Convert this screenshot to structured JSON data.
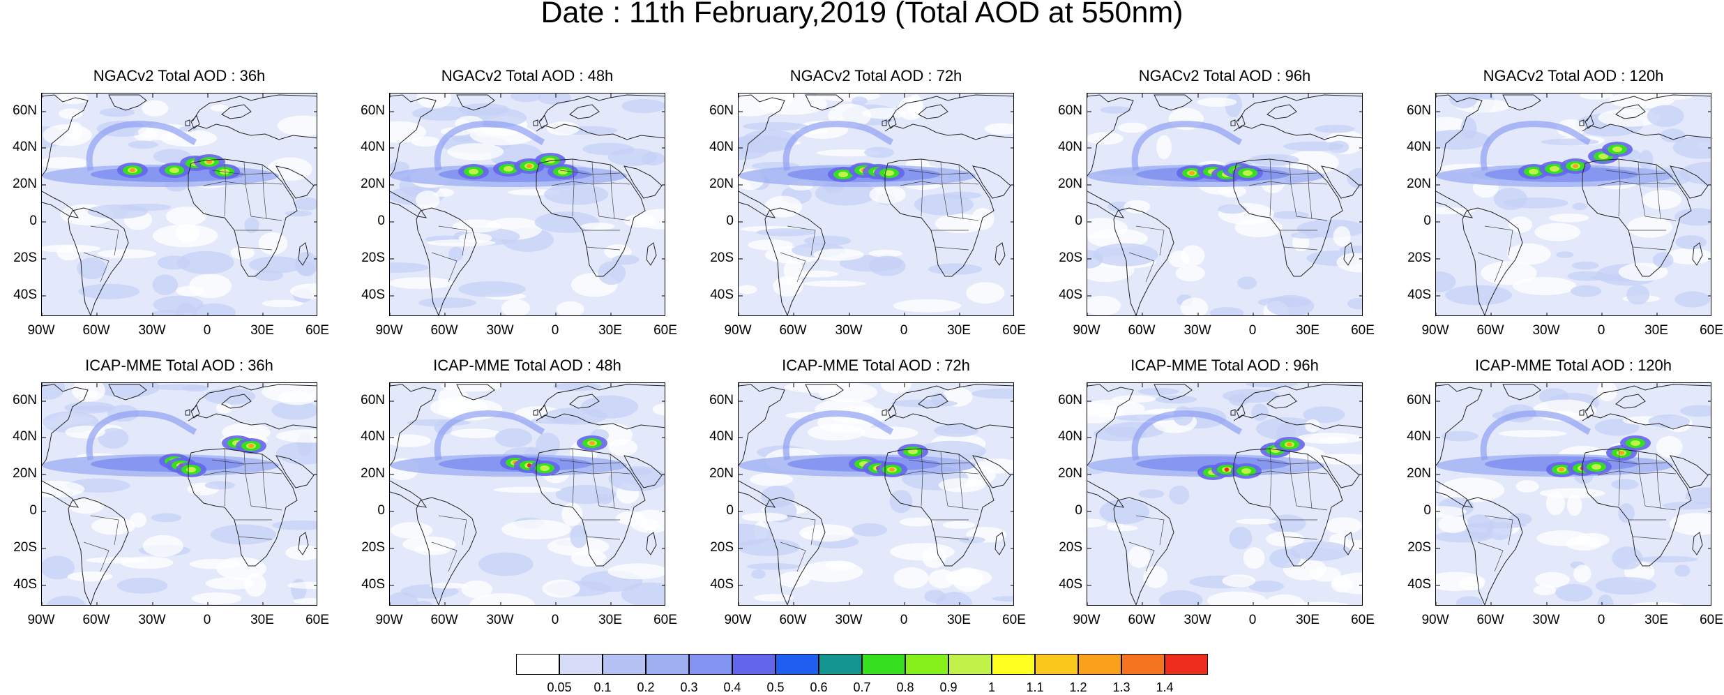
{
  "title": "Date : 11th February,2019 (Total AOD at 550nm)",
  "lat_labels": [
    "60N",
    "40N",
    "20N",
    "0",
    "20S",
    "40S"
  ],
  "lon_labels": [
    "90W",
    "60W",
    "30W",
    "0",
    "30E",
    "60E"
  ],
  "panels": [
    {
      "title": "NGACv2 Total AOD : 36h",
      "model": "NGACv2",
      "lead": "36h"
    },
    {
      "title": "NGACv2 Total AOD : 48h",
      "model": "NGACv2",
      "lead": "48h"
    },
    {
      "title": "NGACv2 Total AOD : 72h",
      "model": "NGACv2",
      "lead": "72h"
    },
    {
      "title": "NGACv2 Total AOD : 96h",
      "model": "NGACv2",
      "lead": "96h"
    },
    {
      "title": "NGACv2 Total AOD : 120h",
      "model": "NGACv2",
      "lead": "120h"
    },
    {
      "title": "ICAP-MME Total AOD : 36h",
      "model": "ICAP-MME",
      "lead": "36h"
    },
    {
      "title": "ICAP-MME Total AOD : 48h",
      "model": "ICAP-MME",
      "lead": "48h"
    },
    {
      "title": "ICAP-MME Total AOD : 72h",
      "model": "ICAP-MME",
      "lead": "72h"
    },
    {
      "title": "ICAP-MME Total AOD : 96h",
      "model": "ICAP-MME",
      "lead": "96h"
    },
    {
      "title": "ICAP-MME Total AOD : 120h",
      "model": "ICAP-MME",
      "lead": "120h"
    }
  ],
  "colorbar": {
    "labels": [
      "0.05",
      "0.1",
      "0.2",
      "0.3",
      "0.4",
      "0.5",
      "0.6",
      "0.7",
      "0.8",
      "0.9",
      "1",
      "1.1",
      "1.2",
      "1.3",
      "1.4"
    ],
    "colors": [
      "#ffffff",
      "#d6dcf8",
      "#b6c2f4",
      "#9fb0f2",
      "#8494f1",
      "#6366ea",
      "#1e5ef0",
      "#12968f",
      "#36e01e",
      "#86f01a",
      "#c2f24a",
      "#ffff20",
      "#fbc81e",
      "#f9a11c",
      "#f3741c",
      "#ee2d1c"
    ]
  }
}
